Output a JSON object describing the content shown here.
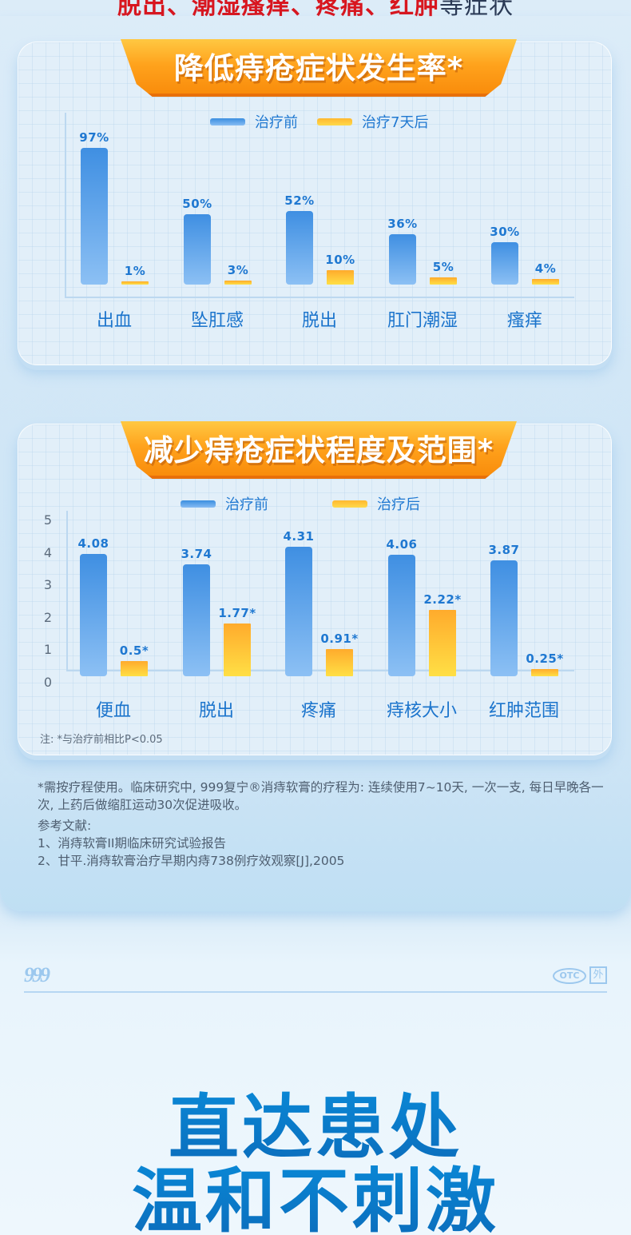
{
  "headline": {
    "red_part": "脱出、潮湿瘙痒、疼痛、红肿",
    "dark_part": "等症状"
  },
  "colors": {
    "before": "#3f8fe2",
    "after": "#ffb830",
    "ribbon": "#ffa21c",
    "label": "#1f78d1",
    "slogan": "#0b74c6"
  },
  "chart_data": [
    {
      "type": "bar",
      "title": "降低痔疮症状发生率*",
      "categories": [
        "出血",
        "坠肛感",
        "脱出",
        "肛门潮湿",
        "瘙痒"
      ],
      "series": [
        {
          "name": "治疗前",
          "values": [
            97,
            50,
            52,
            36,
            30
          ],
          "labels": [
            "97%",
            "50%",
            "52%",
            "36%",
            "30%"
          ]
        },
        {
          "name": "治疗7天后",
          "values": [
            1,
            3,
            10,
            5,
            4
          ],
          "labels": [
            "1%",
            "3%",
            "10%",
            "5%",
            "4%"
          ]
        }
      ],
      "xlabel": "",
      "ylabel": "",
      "ylim": [
        0,
        100
      ],
      "unit": "%",
      "legend_position": "top",
      "grid": false
    },
    {
      "type": "bar",
      "title": "减少痔疮症状程度及范围*",
      "categories": [
        "便血",
        "脱出",
        "疼痛",
        "痔核大小",
        "红肿范围"
      ],
      "series": [
        {
          "name": "治疗前",
          "values": [
            4.08,
            3.74,
            4.31,
            4.06,
            3.87
          ],
          "labels": [
            "4.08",
            "3.74",
            "4.31",
            "4.06",
            "3.87"
          ]
        },
        {
          "name": "治疗后",
          "values": [
            0.5,
            1.77,
            0.91,
            2.22,
            0.25
          ],
          "labels": [
            "0.5*",
            "1.77*",
            "0.91*",
            "2.22*",
            "0.25*"
          ]
        }
      ],
      "yticks": [
        "5",
        "4",
        "3",
        "2",
        "1",
        "0"
      ],
      "xlabel": "",
      "ylabel": "",
      "ylim": [
        0,
        5
      ],
      "legend_position": "top",
      "grid": false,
      "note": "注: *与治疗前相比P<0.05"
    }
  ],
  "footnote": {
    "usage": "*需按疗程使用。临床研究中, 999复宁®消痔软膏的疗程为: 连续使用7~10天, 一次一支, 每日早晚各一次, 上药后做缩肛运动30次促进吸收。",
    "refs_title": "参考文献:",
    "refs": [
      "1、消痔软膏II期临床研究试验报告",
      "2、甘平.消痔软膏治疗早期内痔738例疗效观察[J],2005"
    ]
  },
  "brand": {
    "logo": "999",
    "otc": "OTC",
    "external": "外"
  },
  "slogan": {
    "line1": "直达患处",
    "line2": "温和不刺激"
  }
}
